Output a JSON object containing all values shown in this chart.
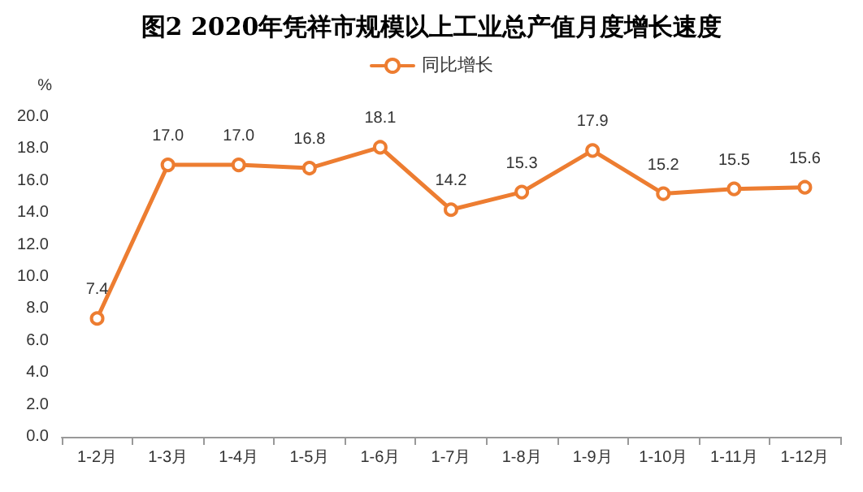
{
  "chart_data": {
    "type": "line",
    "title": "图2 2020年凭祥市规模以上工业总产值月度增长速度",
    "ylabel": "%",
    "categories": [
      "1-2月",
      "1-3月",
      "1-4月",
      "1-5月",
      "1-6月",
      "1-7月",
      "1-8月",
      "1-9月",
      "1-10月",
      "1-11月",
      "1-12月"
    ],
    "series": [
      {
        "name": "同比增长",
        "color": "#ed7d31",
        "values": [
          7.4,
          17.0,
          17.0,
          16.8,
          18.1,
          14.2,
          15.3,
          17.9,
          15.2,
          15.5,
          15.6
        ],
        "value_labels": [
          "7.4",
          "17.0",
          "17.0",
          "16.8",
          "18.1",
          "14.2",
          "15.3",
          "17.9",
          "15.2",
          "15.5",
          "15.6"
        ]
      }
    ],
    "ylim": [
      0,
      20
    ],
    "yticks": [
      {
        "value": 0,
        "label": "0.0"
      },
      {
        "value": 2,
        "label": "2.0"
      },
      {
        "value": 4,
        "label": "4.0"
      },
      {
        "value": 6,
        "label": "6.0"
      },
      {
        "value": 8,
        "label": "8.0"
      },
      {
        "value": 10,
        "label": "10.0"
      },
      {
        "value": 12,
        "label": "12.0"
      },
      {
        "value": 14,
        "label": "14.0"
      },
      {
        "value": 16,
        "label": "16.0"
      },
      {
        "value": 18,
        "label": "18.0"
      },
      {
        "value": 20,
        "label": "20.0"
      }
    ],
    "grid": false,
    "legend": "top",
    "marker": "circle",
    "line_style": "solid"
  }
}
